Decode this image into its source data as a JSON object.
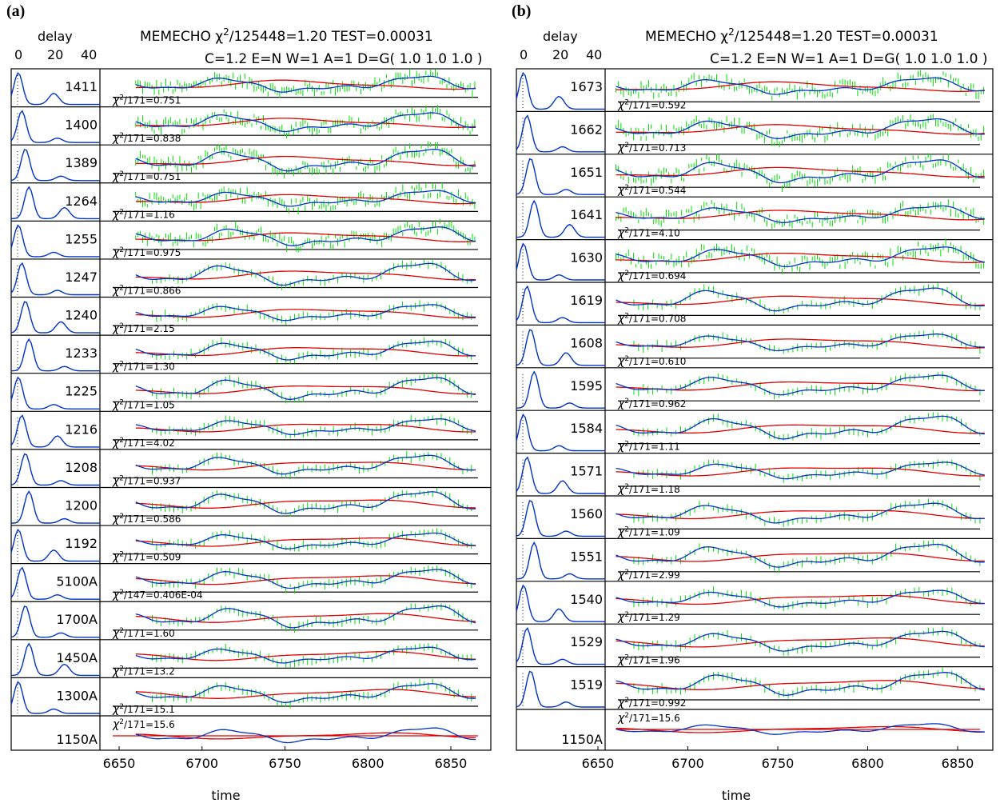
{
  "chart_data": [
    {
      "type": "line",
      "panel_label": "(a)",
      "title_prefix": "MEMECHO",
      "title_suffix": "/125448=1.20  TEST=0.00031",
      "subtitle": "C=1.2  E=N  W=1  A=1  D=G( 1.0  1.0  1.0 )",
      "delay_label": "delay",
      "delay_ticks": [
        "0",
        "20",
        "40"
      ],
      "xlabel": "time",
      "x_ticks": [
        "6650",
        "6700",
        "6750",
        "6800",
        "6850"
      ],
      "xlim": [
        6610,
        6880
      ],
      "colors": {
        "data": "#00e000",
        "echo_model": "#0033cc",
        "driver_model": "#e00000",
        "axis": "#000000"
      },
      "rows": [
        {
          "name": "1411",
          "chi2": "/171=0.751",
          "dof": "171"
        },
        {
          "name": "1400",
          "chi2": "/171=0.838"
        },
        {
          "name": "1389",
          "chi2": "/171=0.751"
        },
        {
          "name": "1264",
          "chi2": "/171=1.16"
        },
        {
          "name": "1255",
          "chi2": "/171=0.975"
        },
        {
          "name": "1247",
          "chi2": "/171=0.866"
        },
        {
          "name": "1240",
          "chi2": "/171=2.15"
        },
        {
          "name": "1233",
          "chi2": "/171=1.30"
        },
        {
          "name": "1225",
          "chi2": "/171=1.05"
        },
        {
          "name": "1216",
          "chi2": "/171=4.02"
        },
        {
          "name": "1208",
          "chi2": "/171=0.937"
        },
        {
          "name": "1200",
          "chi2": "/171=0.586"
        },
        {
          "name": "1192",
          "chi2": "/171=0.509"
        },
        {
          "name": "5100A",
          "chi2": "/147=0.406E-04"
        },
        {
          "name": "1700A",
          "chi2": "/171=1.60"
        },
        {
          "name": "1450A",
          "chi2": "/171=13.2"
        },
        {
          "name": "1300A",
          "chi2": "/171=15.1"
        },
        {
          "name": "1150A",
          "chi2": "/171=15.6"
        }
      ]
    },
    {
      "type": "line",
      "panel_label": "(b)",
      "title_prefix": "MEMECHO",
      "title_suffix": "/125448=1.20  TEST=0.00031",
      "subtitle": "C=1.2  E=N  W=1  A=1  D=G( 1.0  1.0  1.0 )",
      "delay_label": "delay",
      "delay_ticks": [
        "0",
        "20",
        "40"
      ],
      "xlabel": "time",
      "x_ticks": [
        "6650",
        "6700",
        "6750",
        "6800",
        "6850"
      ],
      "xlim": [
        6610,
        6880
      ],
      "colors": {
        "data": "#00e000",
        "echo_model": "#0033cc",
        "driver_model": "#e00000",
        "axis": "#000000"
      },
      "rows": [
        {
          "name": "1673",
          "chi2": "/171=0.592"
        },
        {
          "name": "1662",
          "chi2": "/171=0.713"
        },
        {
          "name": "1651",
          "chi2": "/171=0.544"
        },
        {
          "name": "1641",
          "chi2": "/171=4.10"
        },
        {
          "name": "1630",
          "chi2": "/171=0.694"
        },
        {
          "name": "1619",
          "chi2": "/171=0.708"
        },
        {
          "name": "1608",
          "chi2": "/171=0.610"
        },
        {
          "name": "1595",
          "chi2": "/171=0.962"
        },
        {
          "name": "1584",
          "chi2": "/171=1.11"
        },
        {
          "name": "1571",
          "chi2": "/171=1.18"
        },
        {
          "name": "1560",
          "chi2": "/171=1.09"
        },
        {
          "name": "1551",
          "chi2": "/171=2.99"
        },
        {
          "name": "1540",
          "chi2": "/171=1.29"
        },
        {
          "name": "1529",
          "chi2": "/171=1.96"
        },
        {
          "name": "1519",
          "chi2": "/171=0.992"
        },
        {
          "name": "1150A",
          "chi2": "/171=15.6"
        }
      ]
    }
  ]
}
